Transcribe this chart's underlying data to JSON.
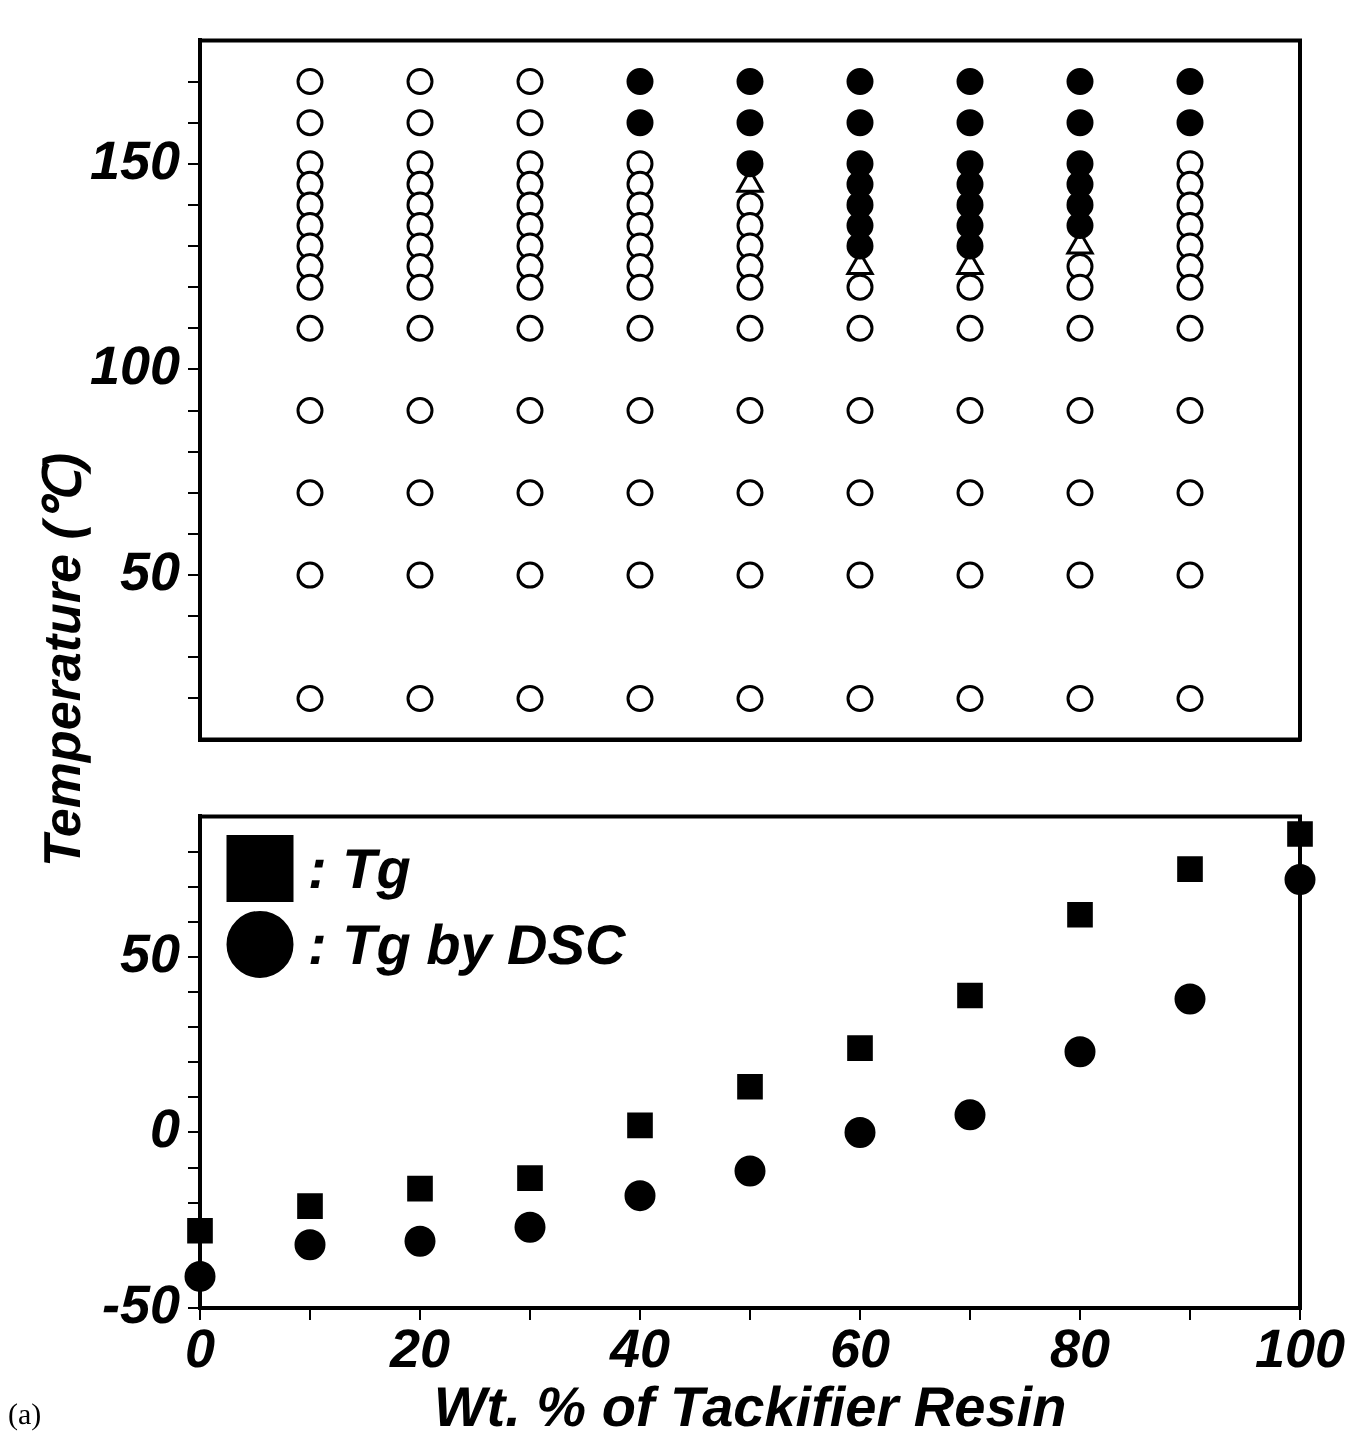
{
  "chart_data": [
    {
      "type": "scatter",
      "ylabel": "Temperature (℃)",
      "xlim": [
        0,
        100
      ],
      "ylim": [
        10,
        180
      ],
      "tick_labels": "y",
      "xticks": [
        {
          "value": 0,
          "label": null
        },
        {
          "value": 10,
          "label": null
        },
        {
          "value": 20,
          "label": null
        },
        {
          "value": 30,
          "label": null
        },
        {
          "value": 40,
          "label": null
        },
        {
          "value": 50,
          "label": null
        },
        {
          "value": 60,
          "label": null
        },
        {
          "value": 70,
          "label": null
        },
        {
          "value": 80,
          "label": null
        },
        {
          "value": 90,
          "label": null
        },
        {
          "value": 100,
          "label": null
        }
      ],
      "yticks": [
        {
          "value": 20,
          "label": null
        },
        {
          "value": 30,
          "label": null
        },
        {
          "value": 40,
          "label": null
        },
        50,
        {
          "value": 60,
          "label": null
        },
        {
          "value": 70,
          "label": null
        },
        {
          "value": 80,
          "label": null
        },
        {
          "value": 90,
          "label": null
        },
        100,
        {
          "value": 110,
          "label": null
        },
        {
          "value": 120,
          "label": null
        },
        {
          "value": 130,
          "label": null
        },
        {
          "value": 140,
          "label": null
        },
        150,
        {
          "value": 160,
          "label": null
        },
        {
          "value": 170,
          "label": null
        }
      ],
      "series": [
        {
          "color": "#ffffff",
          "marker": "circle",
          "x": [
            10,
            10,
            10,
            10,
            10,
            10,
            10,
            10,
            10,
            10,
            10,
            10,
            10,
            10,
            20,
            20,
            20,
            20,
            20,
            20,
            20,
            20,
            20,
            20,
            20,
            20,
            20,
            20,
            30,
            30,
            30,
            30,
            30,
            30,
            30,
            30,
            30,
            30,
            30,
            30,
            30,
            30,
            40,
            40,
            40,
            40,
            40,
            40,
            40,
            40,
            40,
            40,
            40,
            40,
            50,
            50,
            50,
            50,
            50,
            50,
            50,
            50,
            50,
            50,
            60,
            60,
            60,
            60,
            60,
            60,
            70,
            70,
            70,
            70,
            70,
            70,
            80,
            80,
            80,
            80,
            80,
            80,
            80,
            90,
            90,
            90,
            90,
            90,
            90,
            90,
            90,
            90,
            90,
            90,
            90
          ],
          "values": [
            170,
            160,
            150,
            145,
            140,
            135,
            130,
            125,
            120,
            110,
            90,
            70,
            50,
            20,
            170,
            160,
            150,
            145,
            140,
            135,
            130,
            125,
            120,
            110,
            90,
            70,
            50,
            20,
            170,
            160,
            150,
            145,
            140,
            135,
            130,
            125,
            120,
            110,
            90,
            70,
            50,
            20,
            150,
            145,
            140,
            135,
            130,
            125,
            120,
            110,
            90,
            70,
            50,
            20,
            140,
            135,
            130,
            125,
            120,
            110,
            90,
            70,
            50,
            20,
            120,
            110,
            90,
            70,
            50,
            20,
            120,
            110,
            90,
            70,
            50,
            20,
            125,
            120,
            110,
            90,
            70,
            50,
            20,
            150,
            145,
            140,
            135,
            130,
            125,
            120,
            110,
            90,
            70,
            50,
            20
          ]
        },
        {
          "color": "#000000",
          "marker": "circle",
          "x": [
            40,
            40,
            50,
            50,
            50,
            60,
            60,
            60,
            60,
            60,
            60,
            60,
            70,
            70,
            70,
            70,
            70,
            70,
            70,
            80,
            80,
            80,
            80,
            80,
            80,
            90,
            90
          ],
          "values": [
            170,
            160,
            170,
            160,
            150,
            170,
            160,
            150,
            145,
            140,
            135,
            130,
            170,
            160,
            150,
            145,
            140,
            135,
            130,
            170,
            160,
            150,
            145,
            140,
            135,
            170,
            160
          ]
        },
        {
          "color": "#ffffff",
          "marker": "triangle",
          "x": [
            50,
            60,
            70,
            80
          ],
          "values": [
            145,
            125,
            125,
            130
          ]
        }
      ]
    },
    {
      "type": "scatter",
      "xlabel": "Wt. % of Tackifier Resin",
      "xlim": [
        0,
        100
      ],
      "ylim": [
        -50,
        90
      ],
      "legend": "top left",
      "xticks": [
        0,
        {
          "value": 10,
          "label": null
        },
        20,
        {
          "value": 30,
          "label": null
        },
        40,
        {
          "value": 50,
          "label": null
        },
        60,
        {
          "value": 70,
          "label": null
        },
        80,
        {
          "value": 90,
          "label": null
        },
        100
      ],
      "yticks": [
        -50,
        {
          "value": -40,
          "label": null
        },
        {
          "value": -30,
          "label": null
        },
        {
          "value": -20,
          "label": null
        },
        {
          "value": -10,
          "label": null
        },
        0,
        {
          "value": 10,
          "label": null
        },
        {
          "value": 20,
          "label": null
        },
        {
          "value": 30,
          "label": null
        },
        {
          "value": 40,
          "label": null
        },
        50,
        {
          "value": 60,
          "label": null
        },
        {
          "value": 70,
          "label": null
        },
        {
          "value": 80,
          "label": null
        }
      ],
      "annotations": [
        "(a)"
      ],
      "series": [
        {
          "name": ": Tg",
          "color": "#000000",
          "marker": "square",
          "x": [
            0,
            10,
            20,
            30,
            40,
            50,
            60,
            70,
            80,
            90,
            100
          ],
          "values": [
            -28,
            -21,
            -16,
            -13,
            2,
            13,
            24,
            39,
            62,
            75,
            85
          ]
        },
        {
          "name": ": Tg by DSC",
          "color": "#000000",
          "marker": "circle",
          "x": [
            0,
            10,
            20,
            30,
            40,
            50,
            60,
            70,
            80,
            90,
            100
          ],
          "values": [
            -41,
            -32,
            -31,
            -27,
            -18,
            -11,
            0,
            5,
            23,
            38,
            72
          ]
        }
      ]
    }
  ]
}
